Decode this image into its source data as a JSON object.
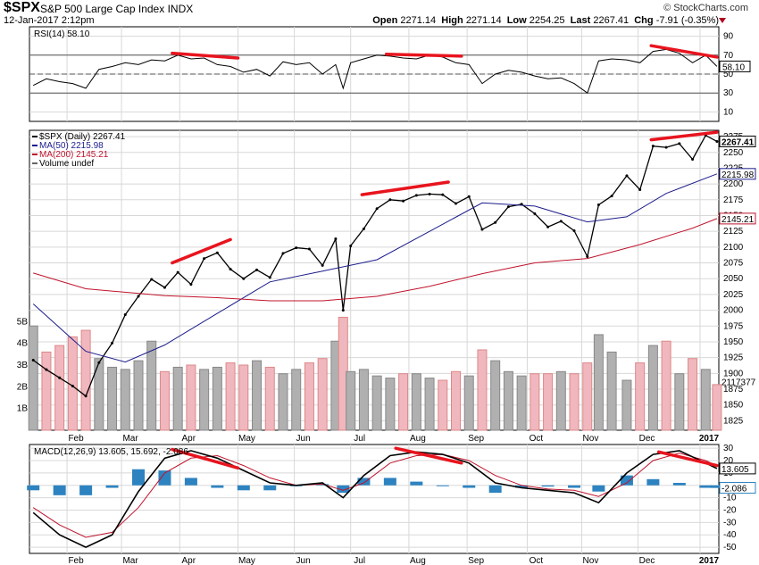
{
  "header": {
    "symbol": "$SPX",
    "name": "S&P 500 Large Cap Index",
    "exchange": "INDX",
    "date_time": "12-Jan-2017 2:12pm",
    "copyright": "© StockCharts.com",
    "open_label": "Open",
    "open": "2271.14",
    "high_label": "High",
    "high": "2271.14",
    "low_label": "Low",
    "low": "2254.25",
    "last_label": "Last",
    "last": "2267.41",
    "chg_label": "Chg",
    "chg": "-7.91 (-0.35%)"
  },
  "colors": {
    "price_line": "#000000",
    "ma50": "#1c1c8c",
    "ma200": "#c0132c",
    "volume_up": "#b0b0b0",
    "volume_down": "#f0b7be",
    "macd_hist": "#2d83c0",
    "trendline": "#e8141e",
    "grid": "#d8d8d8"
  },
  "chart_data": [
    {
      "type": "line",
      "panel": "RSI",
      "legend": "RSI(14) 58.10",
      "current_label": "58.10",
      "ylim": [
        0,
        100
      ],
      "yticks": [
        10,
        30,
        50,
        70,
        90
      ],
      "reference_lines": [
        30,
        50,
        70
      ],
      "series": [
        {
          "name": "RSI(14)",
          "x": [
            "2016-01-14",
            "2016-01-21",
            "2016-01-28",
            "2016-02-04",
            "2016-02-11",
            "2016-02-18",
            "2016-02-25",
            "2016-03-03",
            "2016-03-10",
            "2016-03-17",
            "2016-03-24",
            "2016-03-31",
            "2016-04-07",
            "2016-04-14",
            "2016-04-21",
            "2016-04-28",
            "2016-05-05",
            "2016-05-12",
            "2016-05-19",
            "2016-05-26",
            "2016-06-02",
            "2016-06-09",
            "2016-06-16",
            "2016-06-23",
            "2016-06-27",
            "2016-07-01",
            "2016-07-08",
            "2016-07-15",
            "2016-07-22",
            "2016-07-29",
            "2016-08-05",
            "2016-08-12",
            "2016-08-19",
            "2016-08-26",
            "2016-09-02",
            "2016-09-09",
            "2016-09-16",
            "2016-09-23",
            "2016-09-30",
            "2016-10-07",
            "2016-10-14",
            "2016-10-21",
            "2016-10-28",
            "2016-11-04",
            "2016-11-10",
            "2016-11-17",
            "2016-11-25",
            "2016-12-02",
            "2016-12-09",
            "2016-12-16",
            "2016-12-23",
            "2016-12-30",
            "2017-01-06",
            "2017-01-12"
          ],
          "values": [
            38,
            45,
            42,
            40,
            35,
            55,
            58,
            62,
            60,
            65,
            64,
            70,
            66,
            67,
            60,
            58,
            52,
            55,
            48,
            63,
            60,
            62,
            50,
            60,
            35,
            62,
            66,
            70,
            69,
            67,
            66,
            70,
            68,
            62,
            60,
            40,
            50,
            54,
            52,
            48,
            45,
            46,
            40,
            30,
            64,
            66,
            65,
            62,
            74,
            76,
            72,
            62,
            70,
            58.1
          ]
        }
      ],
      "annotations": [
        {
          "type": "trendline",
          "x": [
            "2016-03-28",
            "2016-05-02"
          ],
          "y": [
            72,
            67
          ]
        },
        {
          "type": "trendline",
          "x": [
            "2016-07-20",
            "2016-08-29"
          ],
          "y": [
            71,
            69
          ]
        },
        {
          "type": "trendline",
          "x": [
            "2016-12-08",
            "2017-01-12"
          ],
          "y": [
            80,
            68
          ]
        }
      ]
    },
    {
      "type": "line",
      "panel": "Price",
      "legend": [
        "$SPX (Daily) 2267.41",
        "MA(50) 2215.98",
        "MA(200) 2145.21",
        "Volume undef"
      ],
      "ylim": [
        1810,
        2285
      ],
      "yticks": [
        1825,
        1850,
        1875,
        1900,
        1925,
        1950,
        1975,
        2000,
        2025,
        2050,
        2075,
        2100,
        2125,
        2150,
        2175,
        2200,
        2225,
        2250,
        2275
      ],
      "current_labels": {
        "price": "2267.41",
        "ma50": "2215.98",
        "ma200": "2145.21",
        "volume": "2117377"
      },
      "x_labels": [
        "Feb",
        "Mar",
        "Apr",
        "May",
        "Jun",
        "Jul",
        "Aug",
        "Sep",
        "Oct",
        "Nov",
        "Dec",
        "2017"
      ],
      "series": [
        {
          "name": "$SPX (Daily)",
          "x": [
            "2016-01-14",
            "2016-01-21",
            "2016-01-28",
            "2016-02-04",
            "2016-02-11",
            "2016-02-18",
            "2016-02-25",
            "2016-03-03",
            "2016-03-10",
            "2016-03-17",
            "2016-03-24",
            "2016-03-31",
            "2016-04-07",
            "2016-04-14",
            "2016-04-21",
            "2016-04-28",
            "2016-05-05",
            "2016-05-12",
            "2016-05-19",
            "2016-05-26",
            "2016-06-02",
            "2016-06-09",
            "2016-06-16",
            "2016-06-23",
            "2016-06-27",
            "2016-07-01",
            "2016-07-08",
            "2016-07-15",
            "2016-07-22",
            "2016-07-29",
            "2016-08-05",
            "2016-08-12",
            "2016-08-19",
            "2016-08-26",
            "2016-09-02",
            "2016-09-09",
            "2016-09-16",
            "2016-09-23",
            "2016-09-30",
            "2016-10-07",
            "2016-10-14",
            "2016-10-21",
            "2016-10-28",
            "2016-11-04",
            "2016-11-10",
            "2016-11-17",
            "2016-11-25",
            "2016-12-02",
            "2016-12-09",
            "2016-12-16",
            "2016-12-23",
            "2016-12-30",
            "2017-01-06",
            "2017-01-12"
          ],
          "values": [
            1921,
            1906,
            1893,
            1880,
            1864,
            1917,
            1948,
            1993,
            2022,
            2049,
            2036,
            2060,
            2041,
            2082,
            2091,
            2065,
            2050,
            2064,
            2052,
            2090,
            2099,
            2097,
            2071,
            2113,
            2000,
            2102,
            2129,
            2161,
            2175,
            2173,
            2182,
            2184,
            2183,
            2169,
            2180,
            2128,
            2139,
            2164,
            2168,
            2153,
            2132,
            2141,
            2126,
            2085,
            2167,
            2181,
            2213,
            2191,
            2260,
            2258,
            2264,
            2239,
            2277,
            2267.41
          ]
        },
        {
          "name": "MA(50)",
          "x": [
            "2016-01-14",
            "2016-02-11",
            "2016-03-03",
            "2016-03-24",
            "2016-04-21",
            "2016-05-19",
            "2016-06-16",
            "2016-07-15",
            "2016-08-12",
            "2016-09-09",
            "2016-10-07",
            "2016-11-04",
            "2016-11-25",
            "2016-12-16",
            "2017-01-12"
          ],
          "values": [
            2010,
            1935,
            1918,
            1945,
            1995,
            2045,
            2062,
            2080,
            2125,
            2170,
            2165,
            2140,
            2148,
            2185,
            2215.98
          ]
        },
        {
          "name": "MA(200)",
          "x": [
            "2016-01-14",
            "2016-02-11",
            "2016-03-24",
            "2016-04-21",
            "2016-05-19",
            "2016-06-16",
            "2016-07-15",
            "2016-08-12",
            "2016-09-09",
            "2016-10-07",
            "2016-11-04",
            "2016-12-02",
            "2016-12-30",
            "2017-01-12"
          ],
          "values": [
            2059,
            2034,
            2023,
            2020,
            2015,
            2015,
            2022,
            2038,
            2058,
            2075,
            2082,
            2104,
            2130,
            2145.21
          ]
        }
      ],
      "annotations": [
        {
          "type": "trendline",
          "x": [
            "2016-03-28",
            "2016-04-28"
          ],
          "y": [
            2075,
            2112
          ]
        },
        {
          "type": "trendline",
          "x": [
            "2016-07-07",
            "2016-08-22"
          ],
          "y": [
            2183,
            2203
          ]
        },
        {
          "type": "trendline",
          "x": [
            "2016-12-08",
            "2017-01-12"
          ],
          "y": [
            2270,
            2282
          ]
        }
      ]
    },
    {
      "type": "bar",
      "panel": "Volume",
      "legend": "Volume undef",
      "yticks": [
        "1B",
        "2B",
        "3B",
        "4B",
        "5B"
      ],
      "ylim": [
        0,
        6
      ],
      "x": [
        "2016-01-14",
        "2016-01-21",
        "2016-01-28",
        "2016-02-04",
        "2016-02-11",
        "2016-02-18",
        "2016-02-25",
        "2016-03-03",
        "2016-03-10",
        "2016-03-17",
        "2016-03-24",
        "2016-03-31",
        "2016-04-07",
        "2016-04-14",
        "2016-04-21",
        "2016-04-28",
        "2016-05-05",
        "2016-05-12",
        "2016-05-19",
        "2016-05-26",
        "2016-06-02",
        "2016-06-09",
        "2016-06-16",
        "2016-06-23",
        "2016-06-27",
        "2016-07-01",
        "2016-07-08",
        "2016-07-15",
        "2016-07-22",
        "2016-07-29",
        "2016-08-05",
        "2016-08-12",
        "2016-08-19",
        "2016-08-26",
        "2016-09-02",
        "2016-09-09",
        "2016-09-16",
        "2016-09-23",
        "2016-09-30",
        "2016-10-07",
        "2016-10-14",
        "2016-10-21",
        "2016-10-28",
        "2016-11-04",
        "2016-11-10",
        "2016-11-17",
        "2016-11-25",
        "2016-12-02",
        "2016-12-09",
        "2016-12-16",
        "2016-12-23",
        "2016-12-30",
        "2017-01-06",
        "2017-01-12"
      ],
      "values": [
        4.8,
        3.6,
        3.9,
        4.3,
        4.6,
        3.3,
        2.9,
        2.8,
        3.2,
        4.1,
        2.7,
        2.9,
        3.0,
        2.8,
        2.9,
        3.1,
        3.0,
        3.2,
        2.9,
        2.6,
        2.8,
        3.1,
        3.3,
        4.1,
        5.2,
        2.7,
        2.8,
        2.5,
        2.4,
        2.6,
        2.6,
        2.4,
        2.3,
        2.7,
        2.5,
        3.7,
        3.2,
        2.7,
        2.5,
        2.6,
        2.6,
        2.7,
        2.6,
        3.1,
        4.4,
        3.6,
        2.3,
        3.1,
        3.9,
        4.1,
        2.6,
        3.3,
        2.8,
        2.1
      ]
    },
    {
      "type": "line",
      "panel": "MACD",
      "legend": "MACD(12,26,9) 13.605, 15.692, -2.086",
      "ylim": [
        -55,
        33
      ],
      "yticks": [
        -50,
        -40,
        -30,
        -20,
        -10,
        0,
        10,
        20,
        30
      ],
      "current_labels": {
        "macd": "13.605",
        "histogram": "-2.086"
      },
      "x_labels": [
        "Feb",
        "Mar",
        "Apr",
        "May",
        "Jun",
        "Jul",
        "Aug",
        "Sep",
        "Oct",
        "Nov",
        "Dec",
        "2017"
      ],
      "series": [
        {
          "name": "MACD",
          "x": [
            "2016-01-14",
            "2016-01-28",
            "2016-02-11",
            "2016-02-25",
            "2016-03-10",
            "2016-03-24",
            "2016-04-07",
            "2016-04-21",
            "2016-05-05",
            "2016-05-19",
            "2016-06-02",
            "2016-06-16",
            "2016-06-27",
            "2016-07-08",
            "2016-07-22",
            "2016-08-05",
            "2016-08-19",
            "2016-09-02",
            "2016-09-16",
            "2016-09-30",
            "2016-10-14",
            "2016-10-28",
            "2016-11-10",
            "2016-11-25",
            "2016-12-09",
            "2016-12-23",
            "2017-01-06",
            "2017-01-12"
          ],
          "values": [
            -22,
            -40,
            -50,
            -40,
            -5,
            22,
            28,
            22,
            12,
            2,
            0,
            2,
            -10,
            8,
            24,
            27,
            25,
            18,
            2,
            -2,
            -4,
            -6,
            -14,
            10,
            25,
            28,
            18,
            13.605
          ]
        },
        {
          "name": "Signal",
          "x": [
            "2016-01-14",
            "2016-01-28",
            "2016-02-11",
            "2016-02-25",
            "2016-03-10",
            "2016-03-24",
            "2016-04-07",
            "2016-04-21",
            "2016-05-05",
            "2016-05-19",
            "2016-06-02",
            "2016-06-16",
            "2016-06-27",
            "2016-07-08",
            "2016-07-22",
            "2016-08-05",
            "2016-08-19",
            "2016-09-02",
            "2016-09-16",
            "2016-09-30",
            "2016-10-14",
            "2016-10-28",
            "2016-11-10",
            "2016-11-25",
            "2016-12-09",
            "2016-12-23",
            "2017-01-06",
            "2017-01-12"
          ],
          "values": [
            -18,
            -32,
            -42,
            -38,
            -18,
            10,
            22,
            24,
            16,
            6,
            0,
            1,
            -4,
            2,
            18,
            24,
            25,
            20,
            8,
            0,
            -3,
            -4,
            -9,
            2,
            20,
            26,
            20,
            15.692
          ]
        },
        {
          "name": "Histogram",
          "x": [
            "2016-01-14",
            "2016-01-28",
            "2016-02-11",
            "2016-02-25",
            "2016-03-10",
            "2016-03-24",
            "2016-04-07",
            "2016-04-21",
            "2016-05-05",
            "2016-05-19",
            "2016-06-02",
            "2016-06-16",
            "2016-06-27",
            "2016-07-08",
            "2016-07-22",
            "2016-08-05",
            "2016-08-19",
            "2016-09-02",
            "2016-09-16",
            "2016-09-30",
            "2016-10-14",
            "2016-10-28",
            "2016-11-10",
            "2016-11-25",
            "2016-12-09",
            "2016-12-23",
            "2017-01-06",
            "2017-01-12"
          ],
          "values": [
            -4,
            -8,
            -8,
            -2,
            13,
            12,
            6,
            -2,
            -4,
            -4,
            0,
            1,
            -6,
            6,
            6,
            3,
            0,
            -2,
            -6,
            -2,
            -1,
            -2,
            -5,
            8,
            5,
            2,
            -2,
            -2.086
          ]
        }
      ],
      "annotations": [
        {
          "type": "trendline",
          "x": [
            "2016-03-28",
            "2016-05-02"
          ],
          "y": [
            29,
            14
          ]
        },
        {
          "type": "trendline",
          "x": [
            "2016-07-25",
            "2016-08-29"
          ],
          "y": [
            30,
            18
          ]
        },
        {
          "type": "trendline",
          "x": [
            "2016-12-12",
            "2017-01-12"
          ],
          "y": [
            27,
            16
          ]
        }
      ]
    }
  ]
}
